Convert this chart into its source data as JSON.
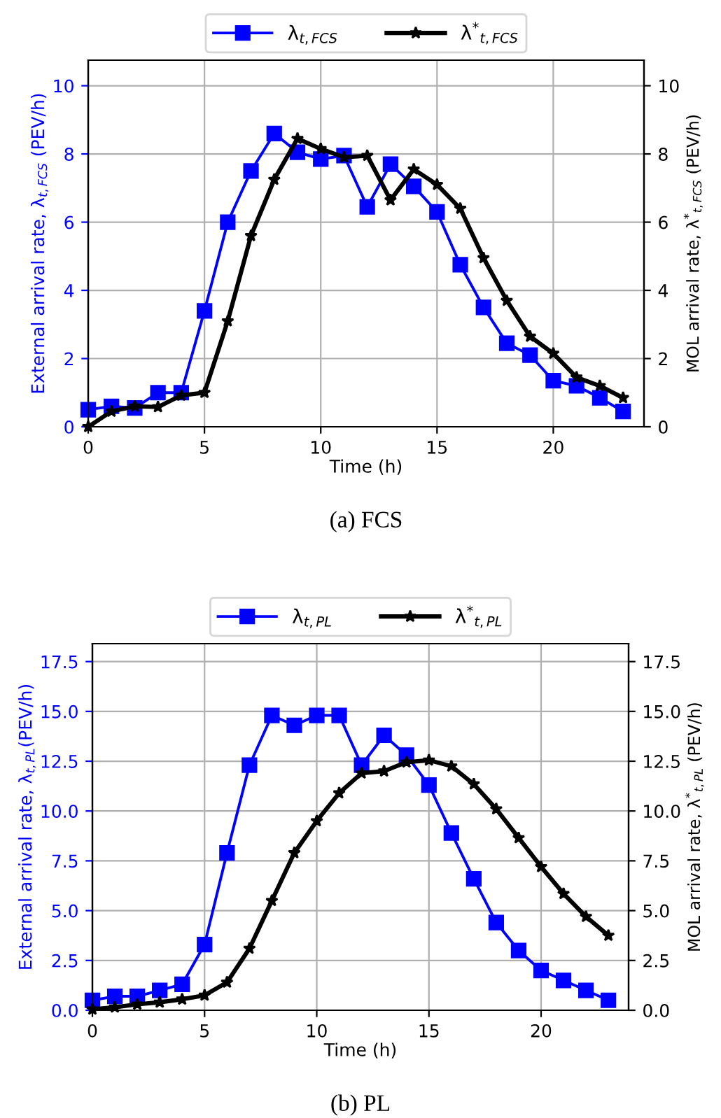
{
  "chart_data": [
    {
      "type": "line",
      "xlabel": "Time (h)",
      "ylabel": "External arrival rate, λ$_{t,FCS}$ (PEV/h)",
      "y2label": "MOL arrival rate, λ$^{*}$$_{t,FCS}$ (PEV/h)",
      "annotations": [
        "(a) FCS"
      ],
      "x": [
        0,
        1,
        2,
        3,
        4,
        5,
        6,
        7,
        8,
        9,
        10,
        11,
        12,
        13,
        14,
        15,
        16,
        17,
        18,
        19,
        20,
        21,
        22,
        23
      ],
      "series": [
        {
          "name": "λ$_{t,FCS}$",
          "color": "#0000ff",
          "marker": "square",
          "values": [
            0.5,
            0.6,
            0.55,
            1.0,
            1.0,
            3.4,
            6.0,
            7.5,
            8.6,
            8.05,
            7.85,
            7.95,
            6.45,
            7.7,
            7.05,
            6.3,
            4.75,
            3.5,
            2.45,
            2.1,
            1.35,
            1.2,
            0.85,
            0.45
          ]
        },
        {
          "name": "λ$^{*}$$_{t,FCS}$",
          "color": "#000000",
          "marker": "star",
          "axis": "y2",
          "values": [
            0,
            0.45,
            0.6,
            0.58,
            0.92,
            1.0,
            3.1,
            5.6,
            7.25,
            8.45,
            8.15,
            7.9,
            7.95,
            6.65,
            7.55,
            7.1,
            6.4,
            4.95,
            3.7,
            2.65,
            2.15,
            1.45,
            1.2,
            0.85
          ]
        }
      ],
      "xlim": [
        0,
        23.9
      ],
      "xticks": [
        0,
        5,
        10,
        15,
        20
      ],
      "ylim": [
        0,
        10.75
      ],
      "yticks": [
        0,
        2,
        4,
        6,
        8,
        10
      ],
      "y2lim": [
        0,
        10.75
      ],
      "y2ticks": [
        0,
        2,
        4,
        6,
        8,
        10
      ],
      "grid": true,
      "legend": "top",
      "line_style": "solid"
    },
    {
      "type": "line",
      "xlabel": "Time (h)",
      "ylabel": "External arrival rate, λ$_{t,PL}$(PEV/h)",
      "y2label": "MOL arrival rate, λ$^{*}$$_{t,PL}$ (PEV/h)",
      "annotations": [
        "(b) PL"
      ],
      "x": [
        0,
        1,
        2,
        3,
        4,
        5,
        6,
        7,
        8,
        9,
        10,
        11,
        12,
        13,
        14,
        15,
        16,
        17,
        18,
        19,
        20,
        21,
        22,
        23
      ],
      "series": [
        {
          "name": "λ$_{t,PL}$",
          "color": "#0000ff",
          "marker": "square",
          "values": [
            0.5,
            0.7,
            0.7,
            1.0,
            1.3,
            3.3,
            7.9,
            12.3,
            14.8,
            14.3,
            14.8,
            14.8,
            12.3,
            13.8,
            12.8,
            11.3,
            8.9,
            6.6,
            4.4,
            3.0,
            2.0,
            1.5,
            1.0,
            0.5
          ]
        },
        {
          "name": "λ$^{*}$$_{t,PL}$",
          "color": "#000000",
          "marker": "star",
          "axis": "y2",
          "values": [
            0.05,
            0.15,
            0.3,
            0.4,
            0.55,
            0.75,
            1.4,
            3.1,
            5.5,
            7.9,
            9.5,
            10.9,
            11.9,
            12.0,
            12.45,
            12.55,
            12.25,
            11.35,
            10.1,
            8.65,
            7.2,
            5.85,
            4.7,
            3.75
          ]
        }
      ],
      "xlim": [
        0,
        23.9
      ],
      "xticks": [
        0,
        5,
        10,
        15,
        20
      ],
      "ylim": [
        0,
        18.4
      ],
      "yticks": [
        {
          "value": 0,
          "label": "0.0"
        },
        2.5,
        {
          "value": 5,
          "label": "5.0"
        },
        7.5,
        {
          "value": 10,
          "label": "10.0"
        },
        12.5,
        {
          "value": 15,
          "label": "15.0"
        },
        17.5
      ],
      "y2lim": [
        0,
        18.4
      ],
      "y2ticks": [
        {
          "value": 0,
          "label": "0.0"
        },
        2.5,
        {
          "value": 5,
          "label": "5.0"
        },
        7.5,
        {
          "value": 10,
          "label": "10.0"
        },
        12.5,
        {
          "value": 15,
          "label": "15.0"
        },
        17.5
      ],
      "grid": true,
      "legend": "top",
      "line_style": "solid"
    }
  ]
}
